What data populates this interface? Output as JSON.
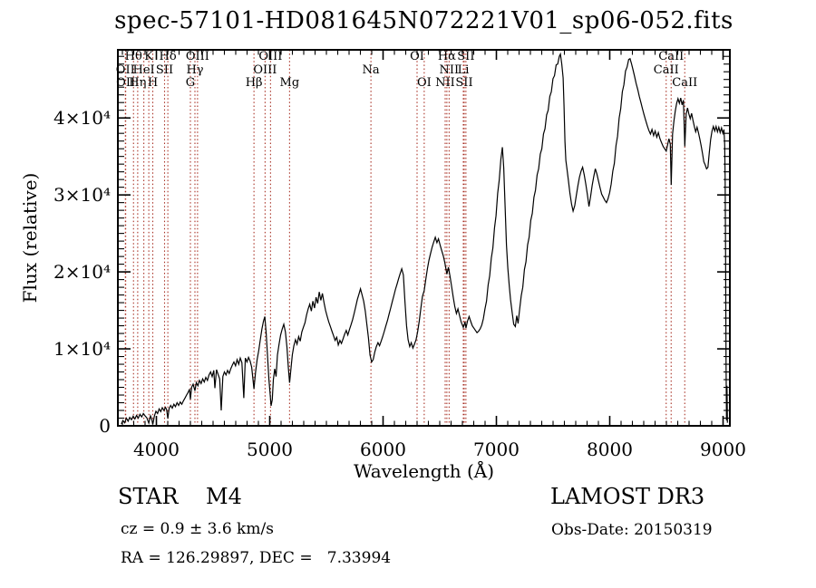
{
  "title": "spec-57101-HD081645N072221V01_sp06-052.fits",
  "colors": {
    "background": "#ffffff",
    "axis": "#000000",
    "spectrum": "#000000",
    "line_marker": "#a93226",
    "text": "#000000"
  },
  "axes": {
    "x": {
      "label": "Wavelength (Å)",
      "min": 3660,
      "max": 9060,
      "major_ticks": [
        4000,
        5000,
        6000,
        7000,
        8000,
        9000
      ],
      "major_tick_labels": [
        "4000",
        "5000",
        "6000",
        "7000",
        "8000",
        "9000"
      ],
      "minor_step": 100
    },
    "y": {
      "label": "Flux (relative)",
      "min": 0,
      "max": 48850,
      "major_ticks": [
        {
          "value": 0,
          "label": "0"
        },
        {
          "value": 10000,
          "label": "1×10⁴"
        },
        {
          "value": 20000,
          "label": "2×10⁴"
        },
        {
          "value": 30000,
          "label": "3×10⁴"
        },
        {
          "value": 40000,
          "label": "4×10⁴"
        }
      ],
      "minor_step": 1000
    }
  },
  "annotations": {
    "class_line": "STAR    M4",
    "cz_line": "cz = 0.9 ± 3.6 km/s",
    "radec_line": "RA = 126.29897, DEC =   7.33994",
    "survey": "LAMOST DR3",
    "obsdate": "Obs-Date: 20150319"
  },
  "spectral_lines": [
    {
      "label": "OII",
      "wavelength": 3726,
      "row": 2
    },
    {
      "label": "OII",
      "wavelength": 3729,
      "row": 3
    },
    {
      "label": "Hθ",
      "wavelength": 3798,
      "row": 1
    },
    {
      "label": "Hη",
      "wavelength": 3835,
      "row": 3
    },
    {
      "label": "HeI",
      "wavelength": 3889,
      "row": 2
    },
    {
      "label": "K",
      "wavelength": 3933,
      "row": 1
    },
    {
      "label": "H",
      "wavelength": 3968,
      "row": 3
    },
    {
      "label": "SII",
      "wavelength": 4072,
      "row": 2
    },
    {
      "label": "Hδ",
      "wavelength": 4101,
      "row": 1
    },
    {
      "label": "G",
      "wavelength": 4300,
      "row": 3
    },
    {
      "label": "Hγ",
      "wavelength": 4340,
      "row": 2
    },
    {
      "label": "OIII",
      "wavelength": 4363,
      "row": 1
    },
    {
      "label": "Hβ",
      "wavelength": 4861,
      "row": 3
    },
    {
      "label": "OIII",
      "wavelength": 4959,
      "row": 2
    },
    {
      "label": "OIII",
      "wavelength": 5007,
      "row": 1
    },
    {
      "label": "Mg",
      "wavelength": 5175,
      "row": 3
    },
    {
      "label": "Na",
      "wavelength": 5893,
      "row": 2
    },
    {
      "label": "OI",
      "wavelength": 6300,
      "row": 1
    },
    {
      "label": "OI",
      "wavelength": 6363,
      "row": 3
    },
    {
      "label": "NII",
      "wavelength": 6548,
      "row": 3
    },
    {
      "label": "Hα",
      "wavelength": 6563,
      "row": 1
    },
    {
      "label": "NII",
      "wavelength": 6583,
      "row": 2
    },
    {
      "label": "Li",
      "wavelength": 6708,
      "row": 2
    },
    {
      "label": "SII",
      "wavelength": 6716,
      "row": 3
    },
    {
      "label": "SII",
      "wavelength": 6731,
      "row": 1
    },
    {
      "label": "CaII",
      "wavelength": 8498,
      "row": 2
    },
    {
      "label": "CaII",
      "wavelength": 8542,
      "row": 1
    },
    {
      "label": "CaII",
      "wavelength": 8662,
      "row": 3
    }
  ],
  "chart_data": {
    "type": "line",
    "title": "spec-57101-HD081645N072221V01_sp06-052.fits",
    "xlabel": "Wavelength (Å)",
    "ylabel": "Flux (relative)",
    "xlim": [
      3660,
      9060
    ],
    "ylim": [
      0,
      48850
    ],
    "grid": false,
    "legend": "none",
    "flux_unit": 1000,
    "wavelength": [
      3690,
      3705,
      3720,
      3735,
      3750,
      3765,
      3780,
      3795,
      3810,
      3825,
      3840,
      3855,
      3870,
      3885,
      3900,
      3915,
      3933,
      3948,
      3960,
      3968,
      3982,
      3996,
      4010,
      4024,
      4038,
      4052,
      4066,
      4080,
      4090,
      4101,
      4112,
      4126,
      4140,
      4154,
      4168,
      4182,
      4196,
      4210,
      4224,
      4238,
      4252,
      4266,
      4280,
      4292,
      4300,
      4310,
      4324,
      4340,
      4352,
      4366,
      4380,
      4394,
      4408,
      4422,
      4436,
      4450,
      4464,
      4478,
      4492,
      4506,
      4516,
      4530,
      4544,
      4558,
      4572,
      4586,
      4600,
      4614,
      4628,
      4642,
      4656,
      4670,
      4684,
      4698,
      4712,
      4726,
      4740,
      4754,
      4771,
      4785,
      4799,
      4813,
      4827,
      4841,
      4861,
      4875,
      4889,
      4903,
      4917,
      4931,
      4945,
      4957,
      4969,
      4981,
      4993,
      5003,
      5012,
      5022,
      5032,
      5044,
      5056,
      5068,
      5082,
      5096,
      5110,
      5124,
      5138,
      5152,
      5164,
      5175,
      5187,
      5199,
      5213,
      5227,
      5241,
      5255,
      5269,
      5283,
      5297,
      5311,
      5325,
      5339,
      5353,
      5367,
      5381,
      5395,
      5409,
      5423,
      5437,
      5451,
      5465,
      5479,
      5493,
      5507,
      5521,
      5535,
      5549,
      5563,
      5577,
      5591,
      5605,
      5619,
      5633,
      5647,
      5661,
      5675,
      5689,
      5703,
      5717,
      5731,
      5745,
      5759,
      5773,
      5787,
      5801,
      5815,
      5829,
      5843,
      5857,
      5871,
      5885,
      5899,
      5913,
      5927,
      5941,
      5955,
      5969,
      5983,
      5997,
      6011,
      6025,
      6039,
      6053,
      6067,
      6081,
      6095,
      6109,
      6123,
      6137,
      6151,
      6165,
      6179,
      6193,
      6207,
      6221,
      6235,
      6249,
      6263,
      6277,
      6291,
      6305,
      6319,
      6333,
      6347,
      6363,
      6377,
      6391,
      6405,
      6419,
      6433,
      6447,
      6461,
      6475,
      6489,
      6503,
      6517,
      6531,
      6545,
      6563,
      6577,
      6591,
      6605,
      6619,
      6633,
      6647,
      6661,
      6675,
      6689,
      6708,
      6723,
      6731,
      6745,
      6759,
      6773,
      6787,
      6801,
      6815,
      6829,
      6843,
      6857,
      6871,
      6885,
      6899,
      6913,
      6927,
      6941,
      6955,
      6969,
      6983,
      6997,
      7011,
      7025,
      7039,
      7053,
      7065,
      7077,
      7089,
      7101,
      7113,
      7125,
      7139,
      7153,
      7167,
      7179,
      7191,
      7205,
      7219,
      7233,
      7247,
      7261,
      7275,
      7289,
      7303,
      7317,
      7331,
      7345,
      7359,
      7373,
      7387,
      7401,
      7415,
      7429,
      7443,
      7457,
      7471,
      7485,
      7499,
      7513,
      7527,
      7541,
      7555,
      7565,
      7577,
      7589,
      7597,
      7605,
      7613,
      7621,
      7635,
      7649,
      7663,
      7677,
      7691,
      7705,
      7719,
      7733,
      7747,
      7761,
      7775,
      7789,
      7803,
      7817,
      7831,
      7845,
      7859,
      7873,
      7887,
      7901,
      7915,
      7929,
      7943,
      7957,
      7971,
      7985,
      7999,
      8013,
      8027,
      8041,
      8055,
      8069,
      8083,
      8097,
      8111,
      8125,
      8139,
      8153,
      8167,
      8179,
      8191,
      8205,
      8219,
      8233,
      8247,
      8261,
      8275,
      8289,
      8303,
      8317,
      8331,
      8345,
      8359,
      8373,
      8387,
      8401,
      8415,
      8429,
      8443,
      8457,
      8471,
      8485,
      8498,
      8510,
      8522,
      8534,
      8542,
      8554,
      8566,
      8578,
      8590,
      8602,
      8614,
      8626,
      8638,
      8650,
      8662,
      8674,
      8686,
      8698,
      8710,
      8722,
      8734,
      8746,
      8758,
      8770,
      8782,
      8794,
      8806,
      8818,
      8830,
      8842,
      8854,
      8866,
      8878,
      8890,
      8902,
      8914,
      8926,
      8938,
      8950,
      8962,
      8974,
      8986,
      8998,
      9008,
      9014,
      9018,
      9022,
      9026,
      9030,
      9034,
      9038
    ],
    "flux": [
      0.25,
      0.7,
      0.4,
      1.0,
      0.6,
      1.1,
      0.8,
      1.25,
      0.9,
      1.35,
      1.0,
      1.5,
      1.15,
      1.6,
      1.3,
      1.05,
      0.35,
      1.3,
      0.8,
      0.15,
      1.3,
      1.9,
      1.6,
      2.2,
      1.85,
      2.35,
      2.0,
      2.4,
      2.1,
      0.95,
      2.25,
      2.65,
      2.3,
      2.8,
      2.5,
      3.0,
      2.65,
      3.1,
      2.8,
      3.25,
      3.6,
      4.0,
      4.35,
      4.75,
      3.45,
      5.0,
      5.4,
      4.55,
      5.6,
      5.2,
      5.9,
      5.5,
      6.1,
      5.7,
      6.3,
      5.9,
      6.6,
      7.0,
      6.4,
      7.2,
      4.9,
      7.3,
      6.7,
      6.1,
      2.0,
      6.4,
      7.0,
      6.6,
      7.2,
      6.8,
      7.4,
      7.9,
      8.3,
      7.8,
      8.6,
      8.0,
      8.8,
      8.2,
      3.6,
      8.8,
      8.3,
      8.9,
      8.4,
      7.6,
      4.8,
      7.0,
      8.6,
      9.8,
      11.2,
      12.6,
      13.6,
      14.2,
      12.0,
      9.0,
      6.0,
      4.2,
      2.6,
      3.4,
      6.0,
      7.4,
      6.4,
      9.2,
      10.6,
      11.8,
      12.6,
      13.2,
      12.2,
      10.2,
      7.6,
      5.6,
      7.4,
      9.2,
      10.4,
      11.2,
      10.6,
      11.6,
      11.0,
      12.2,
      12.8,
      13.4,
      14.4,
      15.2,
      15.8,
      14.9,
      16.2,
      15.3,
      16.7,
      15.9,
      17.4,
      16.3,
      17.2,
      16.0,
      15.0,
      14.2,
      13.5,
      12.9,
      12.3,
      11.7,
      11.1,
      11.5,
      10.5,
      11.1,
      10.7,
      11.3,
      11.9,
      12.4,
      11.8,
      12.5,
      13.1,
      13.8,
      14.6,
      15.5,
      16.4,
      17.1,
      17.8,
      17.0,
      16.2,
      14.9,
      13.2,
      11.4,
      9.2,
      8.3,
      8.6,
      9.6,
      10.3,
      10.8,
      10.4,
      11.0,
      11.6,
      12.3,
      13.0,
      13.7,
      14.5,
      15.3,
      16.1,
      16.9,
      17.7,
      18.4,
      19.1,
      19.8,
      20.4,
      19.6,
      16.2,
      13.0,
      11.2,
      10.3,
      10.8,
      10.1,
      10.6,
      11.2,
      12.2,
      13.6,
      15.2,
      16.8,
      17.6,
      19.0,
      20.4,
      21.5,
      22.4,
      23.2,
      23.9,
      24.5,
      23.8,
      24.3,
      23.5,
      22.8,
      22.1,
      21.2,
      19.7,
      20.6,
      19.4,
      18.1,
      16.7,
      15.5,
      14.6,
      15.2,
      14.3,
      13.5,
      12.8,
      13.5,
      12.7,
      13.6,
      14.2,
      13.6,
      13.0,
      12.7,
      12.4,
      12.1,
      12.3,
      12.6,
      13.1,
      13.9,
      15.2,
      16.2,
      18.3,
      19.5,
      21.8,
      23.1,
      25.7,
      27.3,
      30.2,
      31.9,
      34.6,
      36.2,
      33.5,
      28.5,
      23.5,
      20.5,
      18.3,
      16.4,
      14.7,
      13.2,
      12.9,
      14.3,
      13.3,
      15.1,
      16.9,
      18.0,
      20.3,
      21.3,
      23.5,
      24.5,
      26.7,
      27.6,
      29.7,
      30.6,
      32.6,
      33.4,
      35.3,
      36.0,
      37.9,
      38.6,
      40.4,
      41.0,
      42.8,
      43.4,
      45.1,
      45.5,
      46.9,
      47.0,
      48.0,
      48.3,
      47.0,
      45.2,
      41.5,
      37.0,
      34.5,
      33.6,
      31.9,
      30.2,
      28.8,
      27.9,
      28.6,
      29.9,
      31.2,
      32.3,
      33.1,
      33.6,
      32.6,
      31.4,
      30.0,
      28.5,
      29.8,
      31.2,
      32.4,
      33.4,
      32.7,
      31.8,
      30.9,
      30.1,
      29.7,
      29.3,
      29.0,
      29.5,
      30.3,
      31.4,
      33.1,
      34.1,
      36.4,
      37.6,
      40.0,
      41.2,
      43.4,
      44.3,
      46.1,
      46.6,
      47.6,
      47.7,
      47.1,
      46.3,
      45.4,
      44.5,
      43.7,
      42.8,
      42.0,
      41.2,
      40.4,
      39.7,
      39.0,
      38.4,
      37.9,
      38.5,
      37.7,
      38.3,
      37.5,
      38.1,
      37.3,
      36.8,
      36.3,
      36.0,
      35.7,
      36.5,
      37.3,
      36.6,
      31.3,
      37.9,
      39.6,
      40.9,
      41.9,
      42.5,
      41.9,
      42.6,
      41.7,
      42.3,
      36.3,
      40.5,
      41.3,
      40.5,
      39.9,
      40.6,
      39.7,
      38.9,
      38.2,
      38.8,
      38.1,
      37.3,
      36.4,
      35.4,
      34.3,
      33.9,
      33.4,
      33.6,
      35.5,
      37.2,
      38.3,
      38.9,
      38.3,
      38.9,
      38.2,
      38.8,
      38.1,
      38.7,
      38.0,
      38.5,
      36.5,
      32.0,
      22.0,
      8.0,
      0.7,
      5.2,
      0.4
    ]
  }
}
